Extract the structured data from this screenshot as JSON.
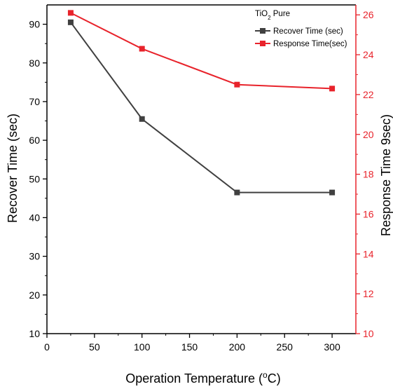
{
  "chart_data": {
    "type": "line",
    "x": [
      25,
      100,
      200,
      300
    ],
    "xlabel": "Operation Temperature (",
    "xlabel_unit": "C)",
    "xlabel_sup": "o",
    "xlim": [
      0,
      325
    ],
    "xticks": [
      0,
      50,
      100,
      150,
      200,
      250,
      300
    ],
    "y_left": {
      "label": "Recover Time (sec)",
      "lim": [
        10,
        95
      ],
      "ticks": [
        10,
        20,
        30,
        40,
        50,
        60,
        70,
        80,
        90
      ],
      "color": "#000000"
    },
    "y_right": {
      "label": "Response Time 9sec)",
      "lim": [
        10,
        26.5
      ],
      "ticks": [
        10,
        12,
        14,
        16,
        18,
        20,
        22,
        24,
        26
      ],
      "color": "#e8232b"
    },
    "legend": {
      "title": "TiO",
      "title_sub": "2",
      "title_rest": " Pure",
      "placement": "top-right"
    },
    "series": [
      {
        "name": "Recover Time (sec)",
        "axis": "left",
        "color": "#404040",
        "values": [
          90.5,
          65.5,
          46.5,
          46.5
        ]
      },
      {
        "name": "Response Time(sec)",
        "axis": "right",
        "color": "#e8232b",
        "values": [
          26.1,
          24.3,
          22.5,
          22.3
        ]
      }
    ],
    "grid": false
  }
}
